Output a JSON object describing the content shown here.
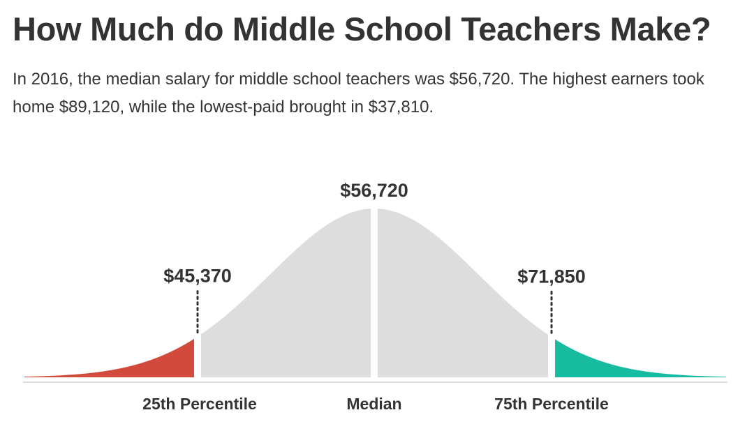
{
  "title": "How Much do Middle School Teachers Make?",
  "subtitle": "In 2016, the median salary for middle school teachers was $56,720. The highest earners took home $89,120, while the lowest-paid brought in $37,810.",
  "colors": {
    "left_tail": "#d14a3c",
    "center": "#dddddd",
    "right_tail": "#17bba0",
    "baseline": "#dddddd",
    "text": "#333333"
  },
  "chart_data": {
    "type": "area",
    "shape": "normal distribution curve",
    "markers": [
      {
        "label": "25th Percentile",
        "value_label": "$45,370",
        "value": 45370,
        "dotted": true
      },
      {
        "label": "Median",
        "value_label": "$56,720",
        "value": 56720,
        "dotted": false
      },
      {
        "label": "75th Percentile",
        "value_label": "$71,850",
        "value": 71850,
        "dotted": true
      }
    ],
    "regions": [
      {
        "from": "min",
        "to": "25th Percentile",
        "color": "#d14a3c"
      },
      {
        "from": "25th Percentile",
        "to": "75th Percentile",
        "color": "#dddddd"
      },
      {
        "from": "75th Percentile",
        "to": "max",
        "color": "#17bba0"
      }
    ]
  }
}
